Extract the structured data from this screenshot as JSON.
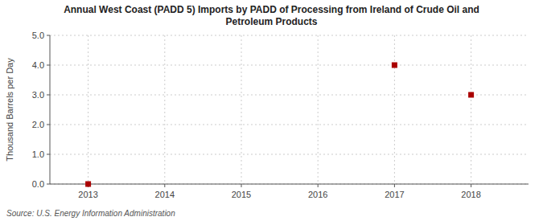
{
  "chart_data": {
    "type": "scatter",
    "title": "Annual West Coast (PADD 5) Imports by PADD of Processing from Ireland of Crude Oil and\nPetroleum Products",
    "y_label": "Thousand Barrels per Day",
    "annotations": [
      "Source: U.S. Energy Information Administration"
    ],
    "x": [
      2013,
      2017,
      2018
    ],
    "values": [
      0.0,
      4.0,
      3.0
    ],
    "color": "#aa0000",
    "marker": "square",
    "xlim": [
      2012.5,
      2018.75
    ],
    "ylim": [
      0.0,
      5.0
    ],
    "xticks": [
      2013,
      2014,
      2015,
      2016,
      2017,
      2018
    ],
    "yticks": [
      {
        "value": 0.0,
        "label": "0.0"
      },
      {
        "value": 1.0,
        "label": "1.0"
      },
      {
        "value": 2.0,
        "label": "2.0"
      },
      {
        "value": 3.0,
        "label": "3.0"
      },
      {
        "value": 4.0,
        "label": "4.0"
      },
      {
        "value": 5.0,
        "label": "5.0"
      }
    ],
    "grid": true
  }
}
